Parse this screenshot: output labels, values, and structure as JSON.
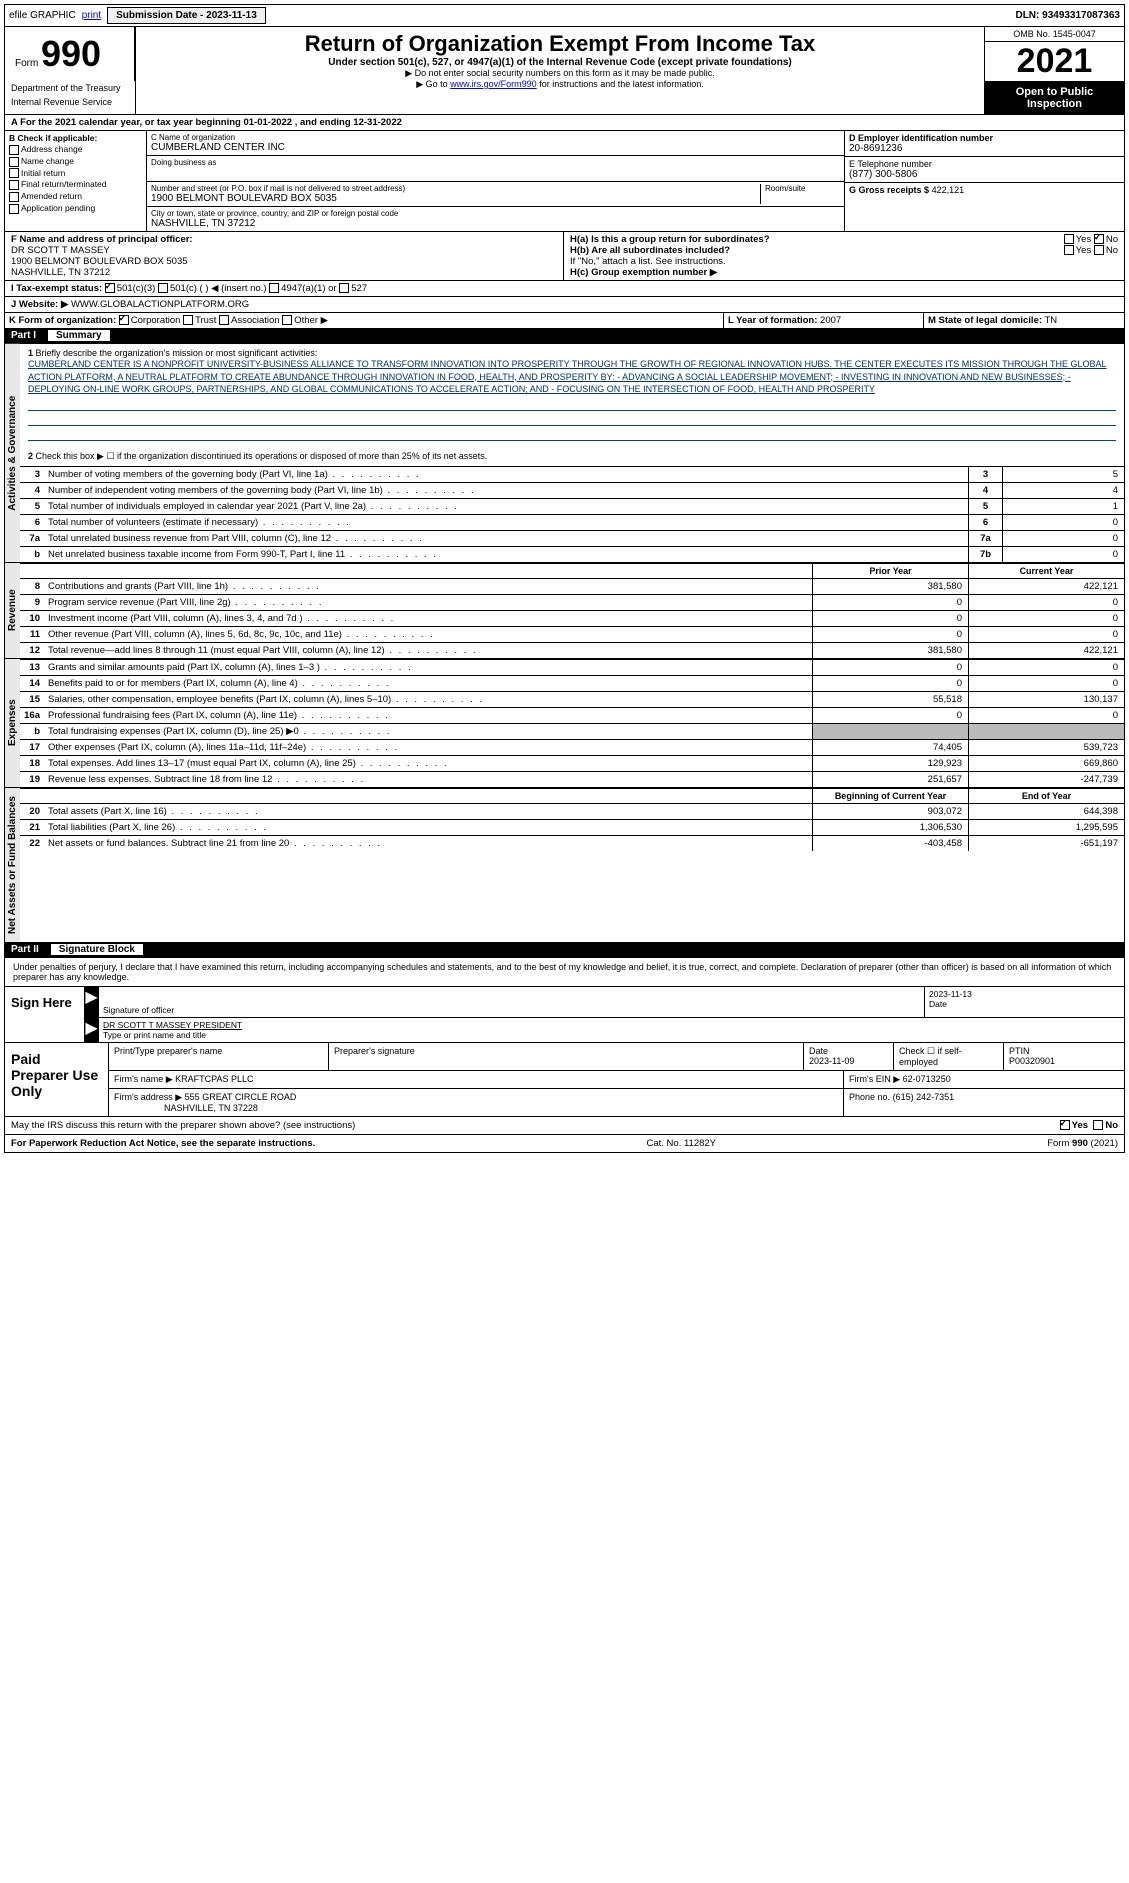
{
  "topbar": {
    "efile": "efile GRAPHIC",
    "print": "print",
    "submission_label": "Submission Date - 2023-11-13",
    "dln": "DLN: 93493317087363"
  },
  "header": {
    "form_prefix": "Form",
    "form_num": "990",
    "dept": "Department of the Treasury",
    "irs": "Internal Revenue Service",
    "title": "Return of Organization Exempt From Income Tax",
    "sub1": "Under section 501(c), 527, or 4947(a)(1) of the Internal Revenue Code (except private foundations)",
    "sub2": "▶ Do not enter social security numbers on this form as it may be made public.",
    "sub3_prefix": "▶ Go to ",
    "sub3_link": "www.irs.gov/Form990",
    "sub3_suffix": " for instructions and the latest information.",
    "omb": "OMB No. 1545-0047",
    "year": "2021",
    "inspection": "Open to Public Inspection"
  },
  "period": {
    "text": "A For the 2021 calendar year, or tax year beginning 01-01-2022  , and ending 12-31-2022"
  },
  "box_b": {
    "label": "B Check if applicable:",
    "items": [
      "Address change",
      "Name change",
      "Initial return",
      "Final return/terminated",
      "Amended return",
      "Application pending"
    ]
  },
  "box_c": {
    "name_label": "C Name of organization",
    "name": "CUMBERLAND CENTER INC",
    "dba_label": "Doing business as",
    "street_label": "Number and street (or P.O. box if mail is not delivered to street address)",
    "room_label": "Room/suite",
    "street": "1900 BELMONT BOULEVARD BOX 5035",
    "city_label": "City or town, state or province, country, and ZIP or foreign postal code",
    "city": "NASHVILLE, TN  37212"
  },
  "box_d": {
    "label": "D Employer identification number",
    "value": "20-8691236"
  },
  "box_e": {
    "label": "E Telephone number",
    "value": "(877) 300-5806"
  },
  "box_g": {
    "label": "G Gross receipts $",
    "value": "422,121"
  },
  "box_f": {
    "label": "F  Name and address of principal officer:",
    "name": "DR SCOTT T MASSEY",
    "addr1": "1900 BELMONT BOULEVARD BOX 5035",
    "addr2": "NASHVILLE, TN  37212"
  },
  "box_h": {
    "a_label": "H(a)  Is this a group return for subordinates?",
    "a_yes": "Yes",
    "a_no": "No",
    "b_label": "H(b) Are all subordinates included?",
    "b_note": "If \"No,\" attach a list. See instructions.",
    "c_label": "H(c)  Group exemption number ▶"
  },
  "box_i": {
    "label": "I  Tax-exempt status:",
    "opt1": "501(c)(3)",
    "opt2": "501(c) (  ) ◀ (insert no.)",
    "opt3": "4947(a)(1) or",
    "opt4": "527"
  },
  "box_j": {
    "label": "J  Website: ▶",
    "value": "WWW.GLOBALACTIONPLATFORM.ORG"
  },
  "box_k": {
    "label": "K Form of organization:",
    "opts": [
      "Corporation",
      "Trust",
      "Association",
      "Other ▶"
    ]
  },
  "box_l": {
    "label": "L Year of formation:",
    "value": "2007"
  },
  "box_m": {
    "label": "M State of legal domicile:",
    "value": "TN"
  },
  "part1": {
    "header": "Part I",
    "title": "Summary",
    "sections": {
      "gov": "Activities & Governance",
      "rev": "Revenue",
      "exp": "Expenses",
      "net": "Net Assets or Fund Balances"
    },
    "q1": "Briefly describe the organization's mission or most significant activities:",
    "mission": "CUMBERLAND CENTER IS A NONPROFIT UNIVERSITY-BUSINESS ALLIANCE TO TRANSFORM INNOVATION INTO PROSPERITY THROUGH THE GROWTH OF REGIONAL INNOVATION HUBS. THE CENTER EXECUTES ITS MISSION THROUGH THE GLOBAL ACTION PLATFORM, A NEUTRAL PLATFORM TO CREATE ABUNDANCE THROUGH INNOVATION IN FOOD, HEALTH, AND PROSPERITY BY: - ADVANCING A SOCIAL LEADERSHIP MOVEMENT; - INVESTING IN INNOVATION AND NEW BUSINESSES; - DEPLOYING ON-LINE WORK GROUPS, PARTNERSHIPS, AND GLOBAL COMMUNICATIONS TO ACCELERATE ACTION; AND - FOCUSING ON THE INTERSECTION OF FOOD, HEALTH AND PROSPERITY",
    "q2": "Check this box ▶ ☐ if the organization discontinued its operations or disposed of more than 25% of its net assets.",
    "rows_gov": [
      {
        "n": "3",
        "t": "Number of voting members of the governing body (Part VI, line 1a)",
        "b": "3",
        "v": "5"
      },
      {
        "n": "4",
        "t": "Number of independent voting members of the governing body (Part VI, line 1b)",
        "b": "4",
        "v": "4"
      },
      {
        "n": "5",
        "t": "Total number of individuals employed in calendar year 2021 (Part V, line 2a)",
        "b": "5",
        "v": "1"
      },
      {
        "n": "6",
        "t": "Total number of volunteers (estimate if necessary)",
        "b": "6",
        "v": "0"
      },
      {
        "n": "7a",
        "t": "Total unrelated business revenue from Part VIII, column (C), line 12",
        "b": "7a",
        "v": "0"
      },
      {
        "n": "b",
        "t": "Net unrelated business taxable income from Form 990-T, Part I, line 11",
        "b": "7b",
        "v": "0"
      }
    ],
    "col_headers": {
      "prior": "Prior Year",
      "current": "Current Year"
    },
    "rows_rev": [
      {
        "n": "8",
        "t": "Contributions and grants (Part VIII, line 1h)",
        "p": "381,580",
        "c": "422,121"
      },
      {
        "n": "9",
        "t": "Program service revenue (Part VIII, line 2g)",
        "p": "0",
        "c": "0"
      },
      {
        "n": "10",
        "t": "Investment income (Part VIII, column (A), lines 3, 4, and 7d )",
        "p": "0",
        "c": "0"
      },
      {
        "n": "11",
        "t": "Other revenue (Part VIII, column (A), lines 5, 6d, 8c, 9c, 10c, and 11e)",
        "p": "0",
        "c": "0"
      },
      {
        "n": "12",
        "t": "Total revenue—add lines 8 through 11 (must equal Part VIII, column (A), line 12)",
        "p": "381,580",
        "c": "422,121"
      }
    ],
    "rows_exp": [
      {
        "n": "13",
        "t": "Grants and similar amounts paid (Part IX, column (A), lines 1–3 )",
        "p": "0",
        "c": "0"
      },
      {
        "n": "14",
        "t": "Benefits paid to or for members (Part IX, column (A), line 4)",
        "p": "0",
        "c": "0"
      },
      {
        "n": "15",
        "t": "Salaries, other compensation, employee benefits (Part IX, column (A), lines 5–10)",
        "p": "55,518",
        "c": "130,137"
      },
      {
        "n": "16a",
        "t": "Professional fundraising fees (Part IX, column (A), line 11e)",
        "p": "0",
        "c": "0"
      },
      {
        "n": "b",
        "t": "Total fundraising expenses (Part IX, column (D), line 25) ▶0",
        "p": "",
        "c": "",
        "grey": true
      },
      {
        "n": "17",
        "t": "Other expenses (Part IX, column (A), lines 11a–11d, 11f–24e)",
        "p": "74,405",
        "c": "539,723"
      },
      {
        "n": "18",
        "t": "Total expenses. Add lines 13–17 (must equal Part IX, column (A), line 25)",
        "p": "129,923",
        "c": "669,860"
      },
      {
        "n": "19",
        "t": "Revenue less expenses. Subtract line 18 from line 12",
        "p": "251,657",
        "c": "-247,739"
      }
    ],
    "net_headers": {
      "begin": "Beginning of Current Year",
      "end": "End of Year"
    },
    "rows_net": [
      {
        "n": "20",
        "t": "Total assets (Part X, line 16)",
        "p": "903,072",
        "c": "644,398"
      },
      {
        "n": "21",
        "t": "Total liabilities (Part X, line 26)",
        "p": "1,306,530",
        "c": "1,295,595"
      },
      {
        "n": "22",
        "t": "Net assets or fund balances. Subtract line 21 from line 20",
        "p": "-403,458",
        "c": "-651,197"
      }
    ]
  },
  "part2": {
    "header": "Part II",
    "title": "Signature Block",
    "decl": "Under penalties of perjury, I declare that I have examined this return, including accompanying schedules and statements, and to the best of my knowledge and belief, it is true, correct, and complete. Declaration of preparer (other than officer) is based on all information of which preparer has any knowledge.",
    "sign_here": "Sign Here",
    "sig_officer": "Signature of officer",
    "sig_date": "2023-11-13",
    "date_label": "Date",
    "officer_name": "DR SCOTT T MASSEY PRESIDENT",
    "type_name_label": "Type or print name and title",
    "paid": "Paid Preparer Use Only",
    "prep_name_label": "Print/Type preparer's name",
    "prep_sig_label": "Preparer's signature",
    "prep_date_label": "Date",
    "prep_date": "2023-11-09",
    "self_emp": "Check ☐ if self-employed",
    "ptin_label": "PTIN",
    "ptin": "P00320901",
    "firm_name_label": "Firm's name    ▶",
    "firm_name": "KRAFTCPAS PLLC",
    "firm_ein_label": "Firm's EIN ▶",
    "firm_ein": "62-0713250",
    "firm_addr_label": "Firm's address ▶",
    "firm_addr1": "555 GREAT CIRCLE ROAD",
    "firm_addr2": "NASHVILLE, TN  37228",
    "phone_label": "Phone no.",
    "phone": "(615) 242-7351"
  },
  "footer": {
    "discuss": "May the IRS discuss this return with the preparer shown above? (see instructions)",
    "yes": "Yes",
    "no": "No",
    "pra": "For Paperwork Reduction Act Notice, see the separate instructions.",
    "cat": "Cat. No. 11282Y",
    "form": "Form 990 (2021)"
  }
}
